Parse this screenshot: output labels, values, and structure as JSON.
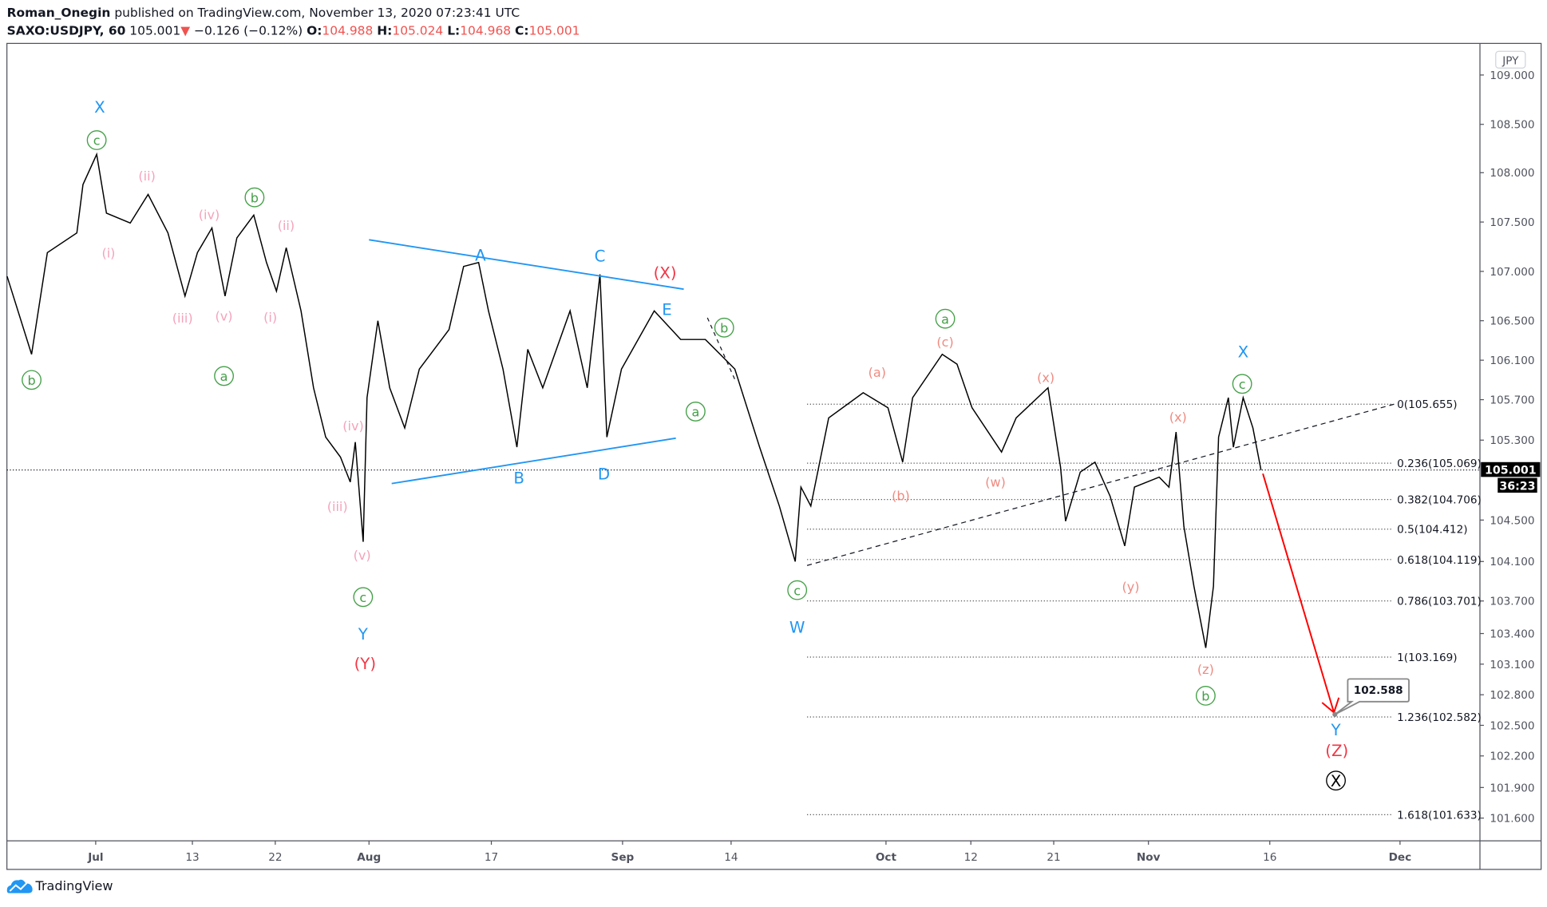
{
  "header": {
    "author": "Roman_Onegin",
    "published": "published on TradingView.com, November 13, 2020 07:23:41 UTC",
    "symbol": "SAXO:USDJPY, 60",
    "last": "105.001",
    "change": "−0.126 (−0.12%)",
    "o_label": "O:",
    "o": "104.988",
    "h_label": "H:",
    "h": "105.024",
    "l_label": "L:",
    "l": "104.968",
    "c_label": "C:",
    "c": "105.001",
    "down_arrow_icon": "triangle-down"
  },
  "footer": {
    "brand": "TradingView",
    "logo_icon": "tradingview-cloud-logo"
  },
  "colors": {
    "blue": "#2196f3",
    "green": "#43a047",
    "pink": "#f4a3bb",
    "salmon": "#ef8a80",
    "red": "#f23645",
    "price_down": "#ef5350"
  },
  "chart_data": {
    "type": "line",
    "currency": "JPY",
    "ylim": [
      101.45,
      109.2
    ],
    "y_ticks": [
      "109.000",
      "108.500",
      "108.000",
      "107.500",
      "107.000",
      "106.500",
      "106.100",
      "105.700",
      "105.300",
      "104.500",
      "104.100",
      "103.700",
      "103.400",
      "103.100",
      "102.800",
      "102.500",
      "102.200",
      "101.900",
      "101.600"
    ],
    "x_ticks": [
      {
        "label": "Jul",
        "date": "2020-07-01",
        "bold": true
      },
      {
        "label": "13",
        "date": "2020-07-13"
      },
      {
        "label": "22",
        "date": "2020-07-22"
      },
      {
        "label": "Aug",
        "date": "2020-08-01",
        "bold": true
      },
      {
        "label": "17",
        "date": "2020-08-17"
      },
      {
        "label": "Sep",
        "date": "2020-09-01",
        "bold": true
      },
      {
        "label": "14",
        "date": "2020-09-14"
      },
      {
        "label": "Oct",
        "date": "2020-10-01",
        "bold": true
      },
      {
        "label": "12",
        "date": "2020-10-12"
      },
      {
        "label": "21",
        "date": "2020-10-21"
      },
      {
        "label": "Nov",
        "date": "2020-11-01",
        "bold": true
      },
      {
        "label": "16",
        "date": "2020-11-16"
      },
      {
        "label": "Dec",
        "date": "2020-12-01",
        "bold": true
      }
    ],
    "price_series": [
      [
        "2020-06-20T00",
        106.95
      ],
      [
        "2020-06-23T01",
        106.16
      ],
      [
        "2020-06-25T00",
        107.19
      ],
      [
        "2020-06-28T16",
        107.39
      ],
      [
        "2020-06-29T10",
        107.88
      ],
      [
        "2020-07-01T03",
        108.19
      ],
      [
        "2020-07-02T08",
        107.59
      ],
      [
        "2020-07-05T07",
        107.49
      ],
      [
        "2020-07-07T12",
        107.78
      ],
      [
        "2020-07-09T23",
        107.39
      ],
      [
        "2020-07-12T02",
        106.75
      ],
      [
        "2020-07-13T13",
        107.19
      ],
      [
        "2020-07-15T03",
        107.44
      ],
      [
        "2020-07-16T13",
        106.75
      ],
      [
        "2020-07-17T20",
        107.34
      ],
      [
        "2020-07-19T16",
        107.57
      ],
      [
        "2020-07-21T01",
        107.09
      ],
      [
        "2020-07-22T03",
        106.8
      ],
      [
        "2020-07-23T04",
        107.24
      ],
      [
        "2020-07-24T18",
        106.6
      ],
      [
        "2020-07-26T02",
        105.82
      ],
      [
        "2020-07-27T09",
        105.33
      ],
      [
        "2020-07-28T23",
        105.13
      ],
      [
        "2020-07-30T00",
        104.88
      ],
      [
        "2020-07-30T13",
        105.28
      ],
      [
        "2020-07-31T09",
        104.29
      ],
      [
        "2020-07-31T19",
        105.72
      ],
      [
        "2020-08-02T04",
        106.5
      ],
      [
        "2020-08-03T17",
        105.82
      ],
      [
        "2020-08-05T16",
        105.42
      ],
      [
        "2020-08-07T14",
        106.01
      ],
      [
        "2020-08-11T11",
        106.41
      ],
      [
        "2020-08-13T09",
        107.05
      ],
      [
        "2020-08-15T08",
        107.09
      ],
      [
        "2020-08-16T15",
        106.6
      ],
      [
        "2020-08-18T08",
        106.01
      ],
      [
        "2020-08-19T22",
        105.23
      ],
      [
        "2020-08-21T04",
        106.21
      ],
      [
        "2020-08-22T21",
        105.82
      ],
      [
        "2020-08-26T00",
        106.6
      ],
      [
        "2020-08-27T23",
        105.82
      ],
      [
        "2020-08-29T10",
        106.97
      ],
      [
        "2020-08-30T05",
        105.33
      ],
      [
        "2020-08-31T21",
        106.01
      ],
      [
        "2020-09-04T19",
        106.6
      ],
      [
        "2020-09-07T23",
        106.31
      ],
      [
        "2020-09-10T22",
        106.31
      ],
      [
        "2020-09-14T10",
        106.01
      ],
      [
        "2020-09-17T03",
        105.23
      ],
      [
        "2020-09-19T07",
        104.64
      ],
      [
        "2020-09-21T01",
        104.1
      ],
      [
        "2020-09-21T16",
        104.83
      ],
      [
        "2020-09-22T18",
        104.64
      ],
      [
        "2020-09-24T17",
        105.52
      ],
      [
        "2020-09-28T12",
        105.77
      ],
      [
        "2020-10-01T06",
        105.62
      ],
      [
        "2020-10-03T04",
        105.08
      ],
      [
        "2020-10-04T11",
        105.72
      ],
      [
        "2020-10-08T07",
        106.16
      ],
      [
        "2020-10-10T05",
        106.06
      ],
      [
        "2020-10-12T03",
        105.62
      ],
      [
        "2020-10-15T08",
        105.18
      ],
      [
        "2020-10-16T22",
        105.52
      ],
      [
        "2020-10-20T09",
        105.82
      ],
      [
        "2020-10-21T19",
        105.03
      ],
      [
        "2020-10-22T09",
        104.49
      ],
      [
        "2020-10-24T02",
        104.98
      ],
      [
        "2020-10-25T19",
        105.08
      ],
      [
        "2020-10-27T13",
        104.74
      ],
      [
        "2020-10-29T06",
        104.25
      ],
      [
        "2020-10-30T09",
        104.83
      ],
      [
        "2020-11-02T08",
        104.93
      ],
      [
        "2020-11-03T13",
        104.83
      ],
      [
        "2020-11-04T10",
        105.38
      ],
      [
        "2020-11-05T09",
        104.44
      ],
      [
        "2020-11-06T15",
        103.85
      ],
      [
        "2020-11-08T02",
        103.26
      ],
      [
        "2020-11-09T01",
        103.85
      ],
      [
        "2020-11-09T16",
        105.33
      ],
      [
        "2020-11-10T21",
        105.72
      ],
      [
        "2020-11-11T12",
        105.23
      ],
      [
        "2020-11-12T17",
        105.72
      ],
      [
        "2020-11-13T22",
        105.42
      ],
      [
        "2020-11-14T22",
        105.001
      ]
    ],
    "last_price": "105.001",
    "countdown": "36:23",
    "fib_levels": [
      {
        "label": "0(105.655)",
        "price": 105.655
      },
      {
        "label": "0.236(105.069)",
        "price": 105.069
      },
      {
        "label": "0.382(104.706)",
        "price": 104.706
      },
      {
        "label": "0.5(104.412)",
        "price": 104.412
      },
      {
        "label": "0.618(104.119)",
        "price": 104.119
      },
      {
        "label": "0.786(103.701)",
        "price": 103.701
      },
      {
        "label": "1(103.169)",
        "price": 103.169
      },
      {
        "label": "1.236(102.582)",
        "price": 102.582
      },
      {
        "label": "1.618(101.633)",
        "price": 101.633
      }
    ],
    "target_callout": "102.588",
    "wave_labels": [
      {
        "text": "X",
        "color": "blue"
      },
      {
        "text": "c",
        "color": "green",
        "circled": true
      },
      {
        "text": "b",
        "color": "green",
        "circled": true
      },
      {
        "text": "(ii)",
        "color": "pink"
      },
      {
        "text": "(i)",
        "color": "pink"
      },
      {
        "text": "(iv)",
        "color": "pink"
      },
      {
        "text": "(iii)",
        "color": "pink"
      },
      {
        "text": "(v)",
        "color": "pink"
      },
      {
        "text": "b",
        "color": "green",
        "circled": true
      },
      {
        "text": "(ii)",
        "color": "pink"
      },
      {
        "text": "(i)",
        "color": "pink"
      },
      {
        "text": "a",
        "color": "green",
        "circled": true
      },
      {
        "text": "(iv)",
        "color": "pink"
      },
      {
        "text": "(iii)",
        "color": "pink"
      },
      {
        "text": "(v)",
        "color": "pink"
      },
      {
        "text": "c",
        "color": "green",
        "circled": true
      },
      {
        "text": "Y",
        "color": "blue"
      },
      {
        "text": "(Y)",
        "color": "red"
      },
      {
        "text": "A",
        "color": "blue"
      },
      {
        "text": "B",
        "color": "blue"
      },
      {
        "text": "C",
        "color": "blue"
      },
      {
        "text": "D",
        "color": "blue"
      },
      {
        "text": "E",
        "color": "blue"
      },
      {
        "text": "(X)",
        "color": "red"
      },
      {
        "text": "b",
        "color": "green",
        "circled": true
      },
      {
        "text": "a",
        "color": "green",
        "circled": true
      },
      {
        "text": "c",
        "color": "green",
        "circled": true
      },
      {
        "text": "W",
        "color": "blue"
      },
      {
        "text": "a",
        "color": "green",
        "circled": true
      },
      {
        "text": "(c)",
        "color": "salmon"
      },
      {
        "text": "(a)",
        "color": "salmon"
      },
      {
        "text": "(b)",
        "color": "salmon"
      },
      {
        "text": "(x)",
        "color": "salmon"
      },
      {
        "text": "(w)",
        "color": "salmon"
      },
      {
        "text": "(x)",
        "color": "salmon"
      },
      {
        "text": "(y)",
        "color": "salmon"
      },
      {
        "text": "(z)",
        "color": "salmon"
      },
      {
        "text": "b",
        "color": "green",
        "circled": true
      },
      {
        "text": "X",
        "color": "blue"
      },
      {
        "text": "c",
        "color": "green",
        "circled": true
      },
      {
        "text": "Y",
        "color": "blue"
      },
      {
        "text": "(Z)",
        "color": "red"
      },
      {
        "text": "X",
        "color": "black",
        "circled": true
      }
    ]
  }
}
